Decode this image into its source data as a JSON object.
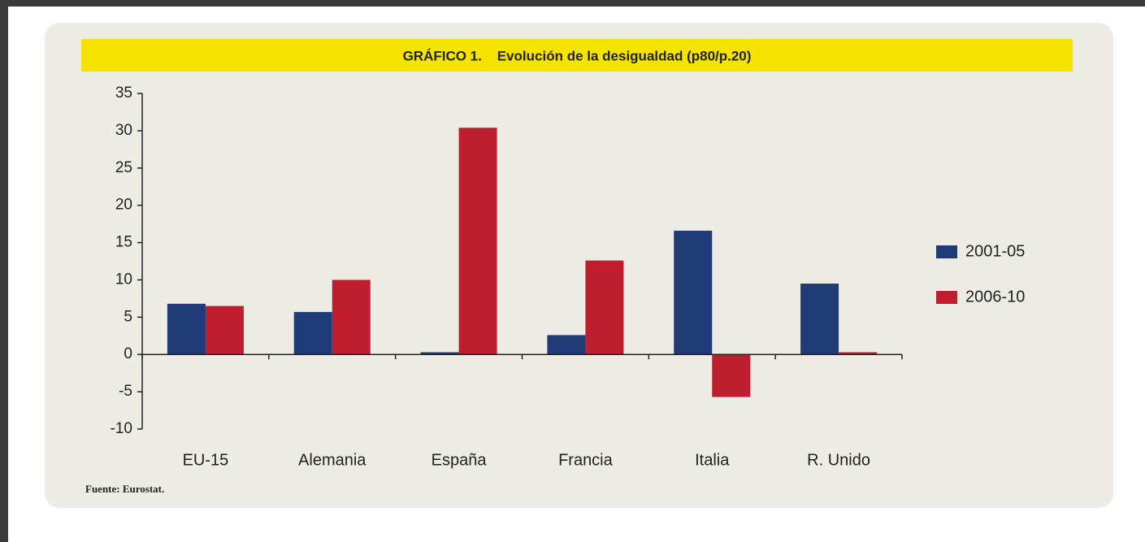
{
  "chart_data": {
    "type": "bar",
    "title": "GRÁFICO 1.    Evolución de la desigualdad (p80/p.20)",
    "categories": [
      "EU-15",
      "Alemania",
      "España",
      "Francia",
      "Italia",
      "R. Unido"
    ],
    "series": [
      {
        "name": "2001-05",
        "color": "#1f3b78",
        "values": [
          6.8,
          5.7,
          0.3,
          2.6,
          16.6,
          9.5
        ]
      },
      {
        "name": "2006-10",
        "color": "#be1e2d",
        "values": [
          6.5,
          10,
          30.4,
          12.6,
          -5.7,
          0.3
        ]
      }
    ],
    "ylim": [
      -10,
      35
    ],
    "yticks": [
      -10,
      -5,
      0,
      5,
      10,
      15,
      20,
      25,
      30,
      35
    ],
    "legend": "right",
    "source": "Fuente: Eurostat."
  }
}
